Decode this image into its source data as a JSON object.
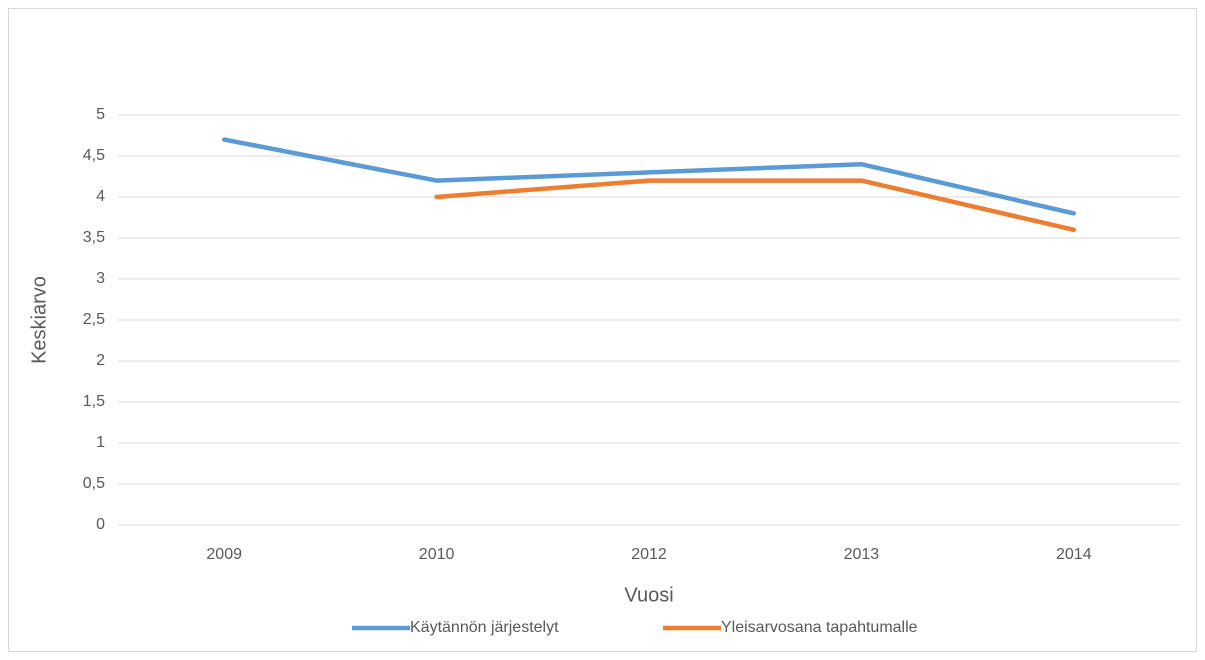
{
  "chart_data": {
    "type": "line",
    "x_label": "Vuosi",
    "y_label": "Keskiarvo",
    "categories": [
      "2009",
      "2010",
      "2012",
      "2013",
      "2014"
    ],
    "series": [
      {
        "name": "Käytännön järjestelyt",
        "color": "#5b9bd5",
        "values": [
          4.7,
          4.2,
          4.3,
          4.4,
          3.8
        ]
      },
      {
        "name": "Yleisarvosana tapahtumalle",
        "color": "#ed7d31",
        "values": [
          null,
          4.0,
          4.2,
          4.2,
          3.6
        ]
      }
    ],
    "ylim": [
      0,
      5
    ],
    "yticks": [
      0,
      {
        "value": 0.5,
        "label": "0,5"
      },
      1,
      {
        "value": 1.5,
        "label": "1,5"
      },
      2,
      {
        "value": 2.5,
        "label": "2,5"
      },
      3,
      {
        "value": 3.5,
        "label": "3,5"
      },
      4,
      {
        "value": 4.5,
        "label": "4,5"
      },
      5
    ],
    "grid": true,
    "legend": "bottom"
  }
}
